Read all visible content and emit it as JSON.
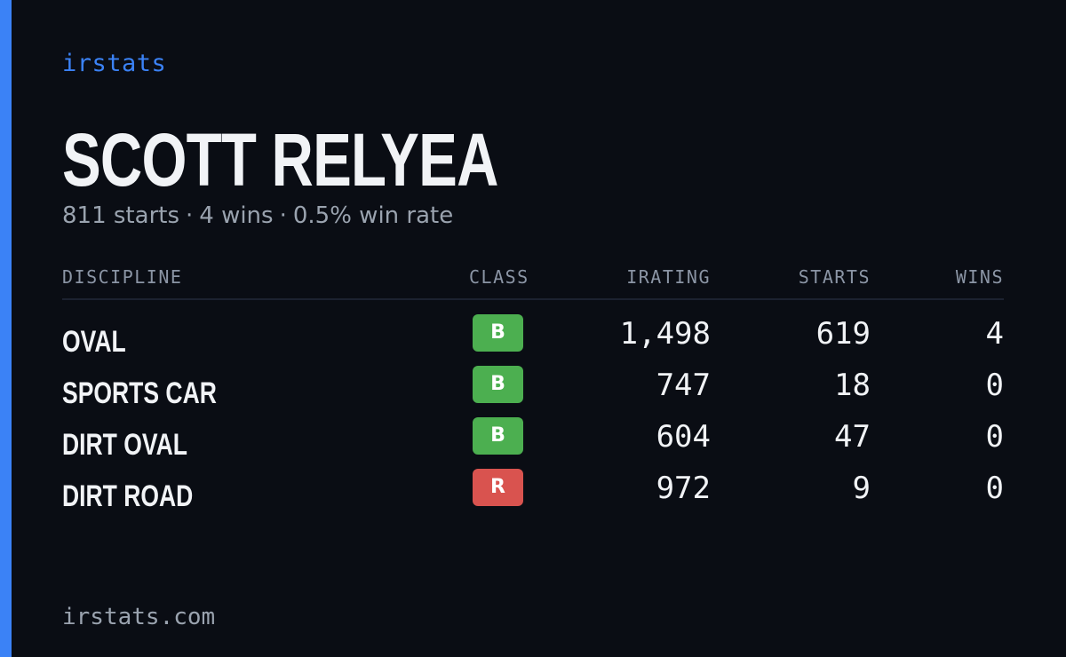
{
  "brand": "irstats",
  "player": {
    "name": "SCOTT RELYEA",
    "starts_text": "811 starts",
    "wins_text": "4 wins",
    "win_rate_text": "0.5% win rate",
    "separator": "·"
  },
  "table": {
    "headers": {
      "discipline": "DISCIPLINE",
      "class": "CLASS",
      "irating": "IRATING",
      "starts": "STARTS",
      "wins": "WINS"
    },
    "rows": [
      {
        "discipline": "OVAL",
        "class": "B",
        "class_color": "#4caf50",
        "irating": "1,498",
        "starts": "619",
        "wins": "4"
      },
      {
        "discipline": "SPORTS CAR",
        "class": "B",
        "class_color": "#4caf50",
        "irating": "747",
        "starts": "18",
        "wins": "0"
      },
      {
        "discipline": "DIRT OVAL",
        "class": "B",
        "class_color": "#4caf50",
        "irating": "604",
        "starts": "47",
        "wins": "0"
      },
      {
        "discipline": "DIRT ROAD",
        "class": "R",
        "class_color": "#d9534f",
        "irating": "972",
        "starts": "9",
        "wins": "0"
      }
    ]
  },
  "footer": "irstats.com",
  "colors": {
    "background": "#0a0d14",
    "accent": "#3b82f6"
  }
}
